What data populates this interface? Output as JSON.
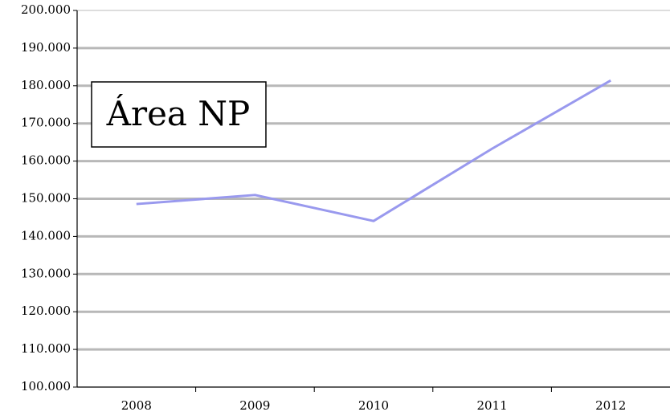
{
  "chart_data": {
    "type": "line",
    "title": "Área NP",
    "categories": [
      "2008",
      "2009",
      "2010",
      "2011",
      "2012"
    ],
    "series": [
      {
        "name": "Área NP",
        "color": "#9999ee",
        "values": [
          148600,
          151000,
          144100,
          163300,
          181400
        ]
      }
    ],
    "ylim": [
      100000,
      200000
    ],
    "yticks": [
      {
        "value": 100000,
        "label": "100.000"
      },
      {
        "value": 110000,
        "label": "110.000"
      },
      {
        "value": 120000,
        "label": "120.000"
      },
      {
        "value": 130000,
        "label": "130.000"
      },
      {
        "value": 140000,
        "label": "140.000"
      },
      {
        "value": 150000,
        "label": "150.000"
      },
      {
        "value": 160000,
        "label": "160.000"
      },
      {
        "value": 170000,
        "label": "170.000"
      },
      {
        "value": 180000,
        "label": "180.000"
      },
      {
        "value": 190000,
        "label": "190.000"
      },
      {
        "value": 200000,
        "label": "200.000"
      }
    ],
    "grid": true
  }
}
